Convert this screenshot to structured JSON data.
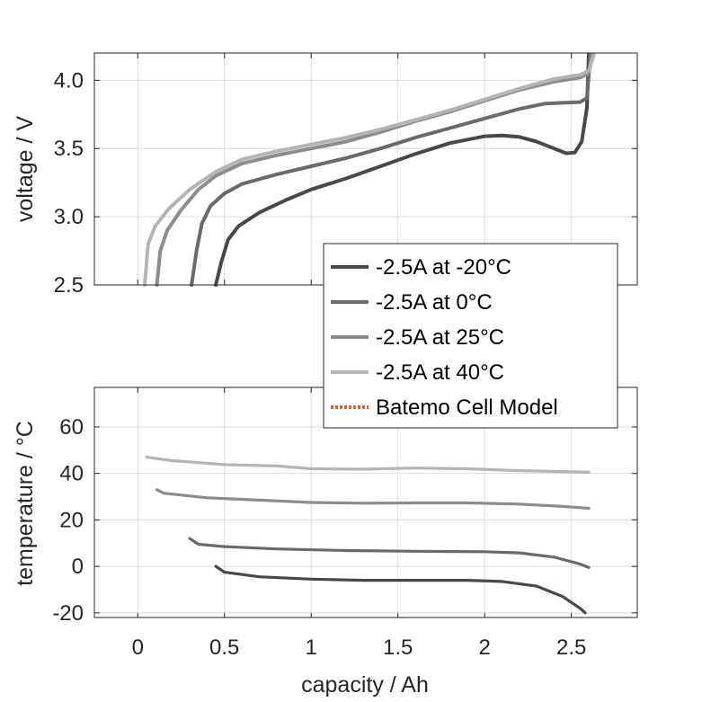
{
  "chart_data": [
    {
      "type": "line",
      "ylabel": "voltage / V",
      "xlabel": "",
      "xlim": [
        -0.25,
        2.88
      ],
      "ylim": [
        2.5,
        4.2
      ],
      "yticks": [
        "2.5",
        "3.0",
        "3.5",
        "4.0"
      ],
      "ytick_values": [
        2.5,
        3.0,
        3.5,
        4.0
      ],
      "xtick_values": [
        0,
        0.5,
        1,
        1.5,
        2,
        2.5
      ],
      "grid": true,
      "series": [
        {
          "name": "-2.5A at -20°C",
          "color": "#484848",
          "points": [
            [
              0.45,
              2.5
            ],
            [
              0.48,
              2.66
            ],
            [
              0.52,
              2.83
            ],
            [
              0.58,
              2.93
            ],
            [
              0.7,
              3.03
            ],
            [
              0.85,
              3.12
            ],
            [
              1.0,
              3.2
            ],
            [
              1.2,
              3.28
            ],
            [
              1.4,
              3.37
            ],
            [
              1.6,
              3.46
            ],
            [
              1.8,
              3.54
            ],
            [
              2.0,
              3.59
            ],
            [
              2.1,
              3.595
            ],
            [
              2.2,
              3.585
            ],
            [
              2.3,
              3.55
            ],
            [
              2.4,
              3.5
            ],
            [
              2.47,
              3.465
            ],
            [
              2.52,
              3.47
            ],
            [
              2.56,
              3.55
            ],
            [
              2.59,
              3.8
            ],
            [
              2.6,
              4.19
            ]
          ]
        },
        {
          "name": "-2.5A at 0°C",
          "color": "#6a6a6a",
          "points": [
            [
              0.31,
              2.5
            ],
            [
              0.34,
              2.76
            ],
            [
              0.37,
              2.95
            ],
            [
              0.42,
              3.08
            ],
            [
              0.5,
              3.17
            ],
            [
              0.6,
              3.24
            ],
            [
              0.8,
              3.31
            ],
            [
              1.0,
              3.37
            ],
            [
              1.2,
              3.43
            ],
            [
              1.4,
              3.5
            ],
            [
              1.6,
              3.58
            ],
            [
              1.8,
              3.65
            ],
            [
              2.0,
              3.72
            ],
            [
              2.2,
              3.79
            ],
            [
              2.35,
              3.83
            ],
            [
              2.45,
              3.835
            ],
            [
              2.55,
              3.84
            ],
            [
              2.59,
              3.87
            ],
            [
              2.61,
              4.19
            ]
          ]
        },
        {
          "name": "-2.5A at 25°C",
          "color": "#8c8c8c",
          "points": [
            [
              0.11,
              2.5
            ],
            [
              0.13,
              2.75
            ],
            [
              0.17,
              2.9
            ],
            [
              0.25,
              3.05
            ],
            [
              0.35,
              3.2
            ],
            [
              0.45,
              3.3
            ],
            [
              0.6,
              3.39
            ],
            [
              0.8,
              3.45
            ],
            [
              1.0,
              3.5
            ],
            [
              1.2,
              3.55
            ],
            [
              1.4,
              3.62
            ],
            [
              1.6,
              3.7
            ],
            [
              1.8,
              3.77
            ],
            [
              2.0,
              3.85
            ],
            [
              2.2,
              3.93
            ],
            [
              2.4,
              3.99
            ],
            [
              2.55,
              4.02
            ],
            [
              2.6,
              4.05
            ],
            [
              2.62,
              4.19
            ]
          ]
        },
        {
          "name": "-2.5A at 40°C",
          "color": "#b4b4b4",
          "points": [
            [
              0.04,
              2.5
            ],
            [
              0.06,
              2.8
            ],
            [
              0.1,
              2.93
            ],
            [
              0.18,
              3.06
            ],
            [
              0.3,
              3.2
            ],
            [
              0.45,
              3.33
            ],
            [
              0.6,
              3.42
            ],
            [
              0.8,
              3.48
            ],
            [
              1.0,
              3.53
            ],
            [
              1.2,
              3.58
            ],
            [
              1.4,
              3.64
            ],
            [
              1.6,
              3.71
            ],
            [
              1.8,
              3.78
            ],
            [
              2.0,
              3.86
            ],
            [
              2.2,
              3.94
            ],
            [
              2.4,
              4.01
            ],
            [
              2.55,
              4.04
            ],
            [
              2.6,
              4.07
            ],
            [
              2.63,
              4.19
            ]
          ]
        }
      ]
    },
    {
      "type": "line",
      "ylabel": "temperature / °C",
      "xlabel": "capacity / Ah",
      "xlim": [
        -0.25,
        2.88
      ],
      "ylim": [
        -22,
        77
      ],
      "yticks": [
        "-20",
        "0",
        "20",
        "40",
        "60"
      ],
      "ytick_values": [
        -20,
        0,
        20,
        40,
        60
      ],
      "xticks": [
        "0",
        "0.5",
        "1",
        "1.5",
        "2",
        "2.5"
      ],
      "xtick_values": [
        0,
        0.5,
        1,
        1.5,
        2,
        2.5
      ],
      "grid": true,
      "series": [
        {
          "name": "-2.5A at -20°C",
          "color": "#484848",
          "points": [
            [
              0.45,
              0
            ],
            [
              0.5,
              -2.5
            ],
            [
              0.7,
              -4.5
            ],
            [
              1.0,
              -5.5
            ],
            [
              1.3,
              -6.0
            ],
            [
              1.6,
              -6.0
            ],
            [
              1.9,
              -6.0
            ],
            [
              2.1,
              -6.5
            ],
            [
              2.3,
              -8.5
            ],
            [
              2.45,
              -13
            ],
            [
              2.55,
              -18
            ],
            [
              2.58,
              -20
            ]
          ]
        },
        {
          "name": "-2.5A at 0°C",
          "color": "#6a6a6a",
          "points": [
            [
              0.3,
              12
            ],
            [
              0.35,
              9.5
            ],
            [
              0.5,
              8.5
            ],
            [
              0.8,
              7.5
            ],
            [
              1.2,
              6.8
            ],
            [
              1.6,
              6.5
            ],
            [
              2.0,
              6.3
            ],
            [
              2.2,
              5.8
            ],
            [
              2.4,
              4
            ],
            [
              2.55,
              1
            ],
            [
              2.6,
              -0.5
            ]
          ]
        },
        {
          "name": "-2.5A at 25°C",
          "color": "#8c8c8c",
          "points": [
            [
              0.11,
              33
            ],
            [
              0.15,
              31.5
            ],
            [
              0.4,
              29.5
            ],
            [
              0.7,
              28.5
            ],
            [
              1.0,
              27.5
            ],
            [
              1.3,
              27.2
            ],
            [
              1.6,
              27.3
            ],
            [
              1.9,
              27.3
            ],
            [
              2.2,
              26.8
            ],
            [
              2.45,
              25.8
            ],
            [
              2.6,
              25
            ]
          ]
        },
        {
          "name": "-2.5A at 40°C",
          "color": "#b4b4b4",
          "points": [
            [
              0.05,
              47
            ],
            [
              0.2,
              45.5
            ],
            [
              0.5,
              43.8
            ],
            [
              0.8,
              43.2
            ],
            [
              1.0,
              42
            ],
            [
              1.3,
              41.8
            ],
            [
              1.6,
              42.3
            ],
            [
              1.9,
              42
            ],
            [
              2.2,
              41.2
            ],
            [
              2.45,
              40.8
            ],
            [
              2.6,
              40.5
            ]
          ]
        }
      ]
    }
  ],
  "legend": {
    "placement": "between-panels-right",
    "entries": [
      {
        "label": "-2.5A at -20°C",
        "color": "#484848",
        "style": "solid"
      },
      {
        "label": "-2.5A at 0°C",
        "color": "#6a6a6a",
        "style": "solid"
      },
      {
        "label": "-2.5A at 25°C",
        "color": "#8c8c8c",
        "style": "solid"
      },
      {
        "label": "-2.5A at 40°C",
        "color": "#b4b4b4",
        "style": "solid"
      },
      {
        "label": "Batemo Cell Model",
        "color": "#e8601c",
        "style": "dotted"
      }
    ]
  }
}
